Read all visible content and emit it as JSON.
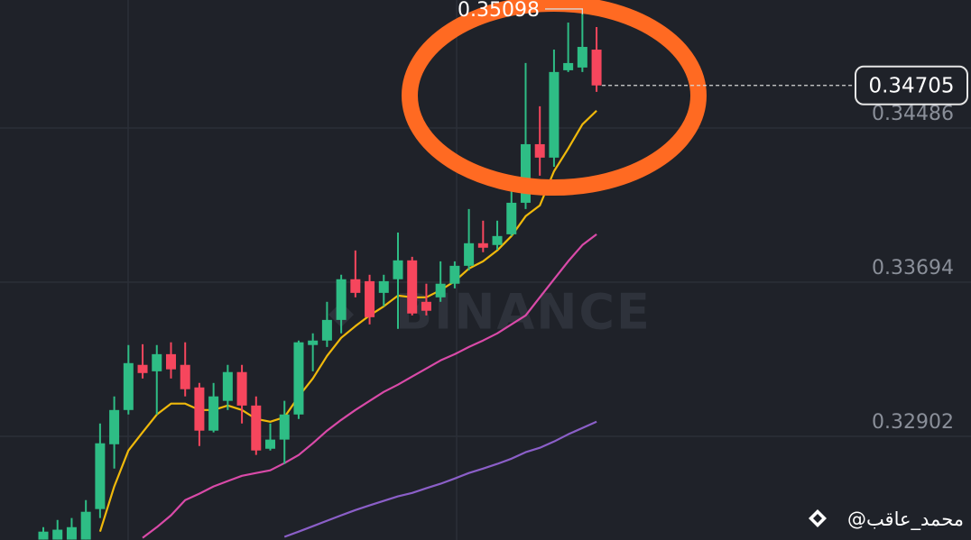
{
  "chart_data": {
    "type": "candlestick",
    "ylim": [
      0.32369,
      0.35144
    ],
    "yticks": [
      0.34486,
      0.33694,
      0.32902
    ],
    "grid": true,
    "up_color": "#2ebd85",
    "down_color": "#f6465d",
    "open": [
      0.32371,
      0.32371,
      0.32371,
      0.32371,
      0.32528,
      0.32861,
      0.33037,
      0.33269,
      0.33236,
      0.33324,
      0.33269,
      0.33153,
      0.32931,
      0.33084,
      0.33232,
      0.3306,
      0.32838,
      0.32885,
      0.33014,
      0.33371,
      0.33394,
      0.335,
      0.33709,
      0.33699,
      0.33639,
      0.33709,
      0.33806,
      0.33593,
      0.33616,
      0.33686,
      0.33778,
      0.33894,
      0.33885,
      0.3394,
      0.34102,
      0.34403,
      0.34334,
      0.34783,
      0.34797,
      0.34889
    ],
    "high": [
      0.32435,
      0.32472,
      0.32482,
      0.32574,
      0.32968,
      0.33107,
      0.33371,
      0.33375,
      0.33371,
      0.33385,
      0.33385,
      0.33176,
      0.33176,
      0.33269,
      0.33269,
      0.33107,
      0.32968,
      0.33084,
      0.33394,
      0.33431,
      0.33593,
      0.33732,
      0.33857,
      0.33732,
      0.33732,
      0.33949,
      0.33824,
      0.33686,
      0.33801,
      0.33801,
      0.3407,
      0.3401,
      0.3401,
      0.34172,
      0.3482,
      0.34598,
      0.34889,
      0.35028,
      0.35098,
      0.35005
    ],
    "low": [
      0.32371,
      0.32371,
      0.32371,
      0.32371,
      0.32482,
      0.32736,
      0.33014,
      0.33199,
      0.33014,
      0.33199,
      0.33107,
      0.32852,
      0.32922,
      0.33037,
      0.32968,
      0.32806,
      0.32829,
      0.3276,
      0.32991,
      0.33236,
      0.33361,
      0.33431,
      0.33616,
      0.33477,
      0.3357,
      0.33454,
      0.33523,
      0.33523,
      0.33593,
      0.33662,
      0.33755,
      0.33848,
      0.33861,
      0.33931,
      0.3407,
      0.34241,
      0.34287,
      0.34774,
      0.34774,
      0.34672
    ],
    "close": [
      0.32412,
      0.32422,
      0.32435,
      0.32514,
      0.32866,
      0.33037,
      0.33278,
      0.33227,
      0.33324,
      0.33246,
      0.33144,
      0.32931,
      0.33107,
      0.33232,
      0.3306,
      0.32829,
      0.32885,
      0.33014,
      0.33385,
      0.33394,
      0.335,
      0.33709,
      0.33639,
      0.33514,
      0.33699,
      0.33806,
      0.33533,
      0.33547,
      0.33686,
      0.33778,
      0.33894,
      0.33871,
      0.33931,
      0.34102,
      0.34403,
      0.34334,
      0.34774,
      0.3482,
      0.34903,
      0.34705
    ],
    "ma_lines": [
      {
        "color": "#f0b90b",
        "values": [
          null,
          null,
          null,
          null,
          0.32412,
          0.32644,
          0.32829,
          0.32922,
          0.33014,
          0.3307,
          0.3307,
          0.33037,
          0.33037,
          0.3306,
          0.33037,
          0.32991,
          0.32977,
          0.33,
          0.33107,
          0.33199,
          0.33315,
          0.33408,
          0.33468,
          0.33523,
          0.3357,
          0.33625,
          0.33616,
          0.33616,
          0.33653,
          0.33699,
          0.33764,
          0.33801,
          0.33857,
          0.33931,
          0.34033,
          0.34088,
          0.34264,
          0.3438,
          0.34505,
          0.34575
        ]
      },
      {
        "color": "#d94aa8",
        "values": [
          null,
          null,
          null,
          null,
          null,
          null,
          null,
          0.3238,
          0.32435,
          0.32496,
          0.32574,
          0.32607,
          0.32644,
          0.32672,
          0.32699,
          0.32713,
          0.32727,
          0.32764,
          0.32806,
          0.32866,
          0.32931,
          0.32986,
          0.33037,
          0.33084,
          0.3313,
          0.33167,
          0.33209,
          0.3325,
          0.33292,
          0.33324,
          0.33361,
          0.33394,
          0.33431,
          0.33477,
          0.33523,
          0.33616,
          0.33709,
          0.33801,
          0.33885,
          0.3394
        ]
      },
      {
        "color": "#8b5fc8",
        "values": [
          null,
          null,
          null,
          null,
          null,
          null,
          null,
          null,
          null,
          null,
          null,
          null,
          null,
          null,
          null,
          null,
          null,
          0.32385,
          0.32412,
          0.3244,
          0.32468,
          0.32496,
          0.32523,
          0.32547,
          0.3257,
          0.32593,
          0.32611,
          0.32635,
          0.32658,
          0.32685,
          0.32713,
          0.32736,
          0.3276,
          0.32787,
          0.3282,
          0.32843,
          0.32875,
          0.32912,
          0.32945,
          0.32977
        ]
      }
    ],
    "last_price": 0.34705,
    "high_price": 0.35098,
    "watermark": "BINANCE",
    "credit": "@محمد_عاقب"
  }
}
